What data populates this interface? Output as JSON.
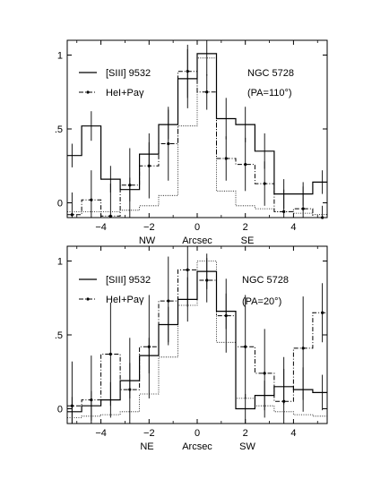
{
  "chart_data": [
    {
      "type": "step",
      "panel": "top",
      "object_label": "NGC 5728",
      "pa_label": "(PA=110°)",
      "legend": [
        {
          "label": "[SIII] 9532",
          "style": "solid"
        },
        {
          "label": "HeI+Paγ",
          "style": "dash-dot"
        }
      ],
      "xlabel": "Arcsec",
      "xlabel_left": "NW",
      "xlabel_right": "SE",
      "xlim": [
        -5.4,
        5.4
      ],
      "ylim": [
        -0.1,
        1.1
      ],
      "xticks": [
        -4,
        -2,
        0,
        2,
        4
      ],
      "yticks": [
        0,
        0.5,
        1
      ],
      "yticklabels": [
        "0",
        ".5",
        "1"
      ],
      "bin_width": 0.8,
      "bin_centers": [
        -5.2,
        -4.4,
        -3.6,
        -2.8,
        -2.0,
        -1.2,
        -0.4,
        0.4,
        1.2,
        2.0,
        2.8,
        3.6,
        4.4,
        5.2
      ],
      "series": [
        {
          "name": "[SIII] 9532",
          "style": "solid",
          "values": [
            0.32,
            0.52,
            0.16,
            0.09,
            0.33,
            0.53,
            0.84,
            1.01,
            0.57,
            0.53,
            0.35,
            0.06,
            0.06,
            0.14
          ],
          "errors": [
            0.08,
            0.1,
            0.09,
            0.08,
            0.08,
            0.1,
            0.2,
            0.15,
            0.14,
            0.12,
            0.12,
            0.1,
            0.08,
            0.08
          ]
        },
        {
          "name": "HeI+Paγ",
          "style": "dash-dot",
          "values": [
            -0.08,
            0.02,
            -0.09,
            0.12,
            0.25,
            0.4,
            0.89,
            0.75,
            0.3,
            0.26,
            0.13,
            -0.06,
            -0.04,
            -0.1
          ],
          "errors": [
            0.15,
            0.2,
            0.22,
            0.25,
            0.22,
            0.25,
            0.18,
            0.12,
            0.15,
            0.18,
            0.15,
            0.15,
            0.15,
            0.08
          ]
        },
        {
          "name": "",
          "style": "dotted",
          "values": [
            -0.06,
            -0.06,
            -0.06,
            -0.05,
            -0.02,
            0.05,
            0.52,
            0.98,
            0.08,
            -0.02,
            -0.04,
            -0.06,
            -0.07,
            -0.08
          ]
        }
      ]
    },
    {
      "type": "step",
      "panel": "bottom",
      "object_label": "NGC 5728",
      "pa_label": "(PA=20°)",
      "legend": [
        {
          "label": "[SIII] 9532",
          "style": "solid"
        },
        {
          "label": "HeI+Paγ",
          "style": "dash-dot"
        }
      ],
      "xlabel": "Arcsec",
      "xlabel_left": "NE",
      "xlabel_right": "SW",
      "xlim": [
        -5.4,
        5.4
      ],
      "ylim": [
        -0.1,
        1.1
      ],
      "xticks": [
        -4,
        -2,
        0,
        2,
        4
      ],
      "yticks": [
        0,
        0.5,
        1
      ],
      "yticklabels": [
        "0",
        ".5",
        "1"
      ],
      "bin_width": 0.8,
      "bin_centers": [
        -5.2,
        -4.4,
        -3.6,
        -2.8,
        -2.0,
        -1.2,
        -0.4,
        0.4,
        1.2,
        2.0,
        2.8,
        3.6,
        4.4,
        5.2
      ],
      "series": [
        {
          "name": "[SIII] 9532",
          "style": "solid",
          "values": [
            -0.02,
            0.02,
            0.06,
            0.19,
            0.36,
            0.57,
            0.74,
            0.93,
            0.66,
            0.0,
            0.09,
            0.15,
            0.13,
            0.11
          ],
          "errors": [
            0.1,
            0.1,
            0.12,
            0.12,
            0.12,
            0.12,
            0.15,
            0.12,
            0.12,
            0.1,
            0.1,
            0.12,
            0.15,
            0.12
          ]
        },
        {
          "name": "HeI+Paγ",
          "style": "dash-dot",
          "values": [
            0.02,
            0.06,
            0.37,
            0.13,
            0.42,
            0.73,
            0.94,
            0.87,
            0.63,
            0.42,
            0.24,
            0.05,
            0.41,
            0.65
          ],
          "errors": [
            0.3,
            0.3,
            0.35,
            0.35,
            0.35,
            0.3,
            0.25,
            0.15,
            0.25,
            0.35,
            0.3,
            0.3,
            0.35,
            0.2
          ]
        },
        {
          "name": "",
          "style": "dotted",
          "values": [
            -0.06,
            -0.05,
            -0.04,
            -0.02,
            0.1,
            0.35,
            0.7,
            1.0,
            0.45,
            0.07,
            0.02,
            -0.02,
            -0.04,
            -0.05
          ]
        }
      ]
    }
  ]
}
